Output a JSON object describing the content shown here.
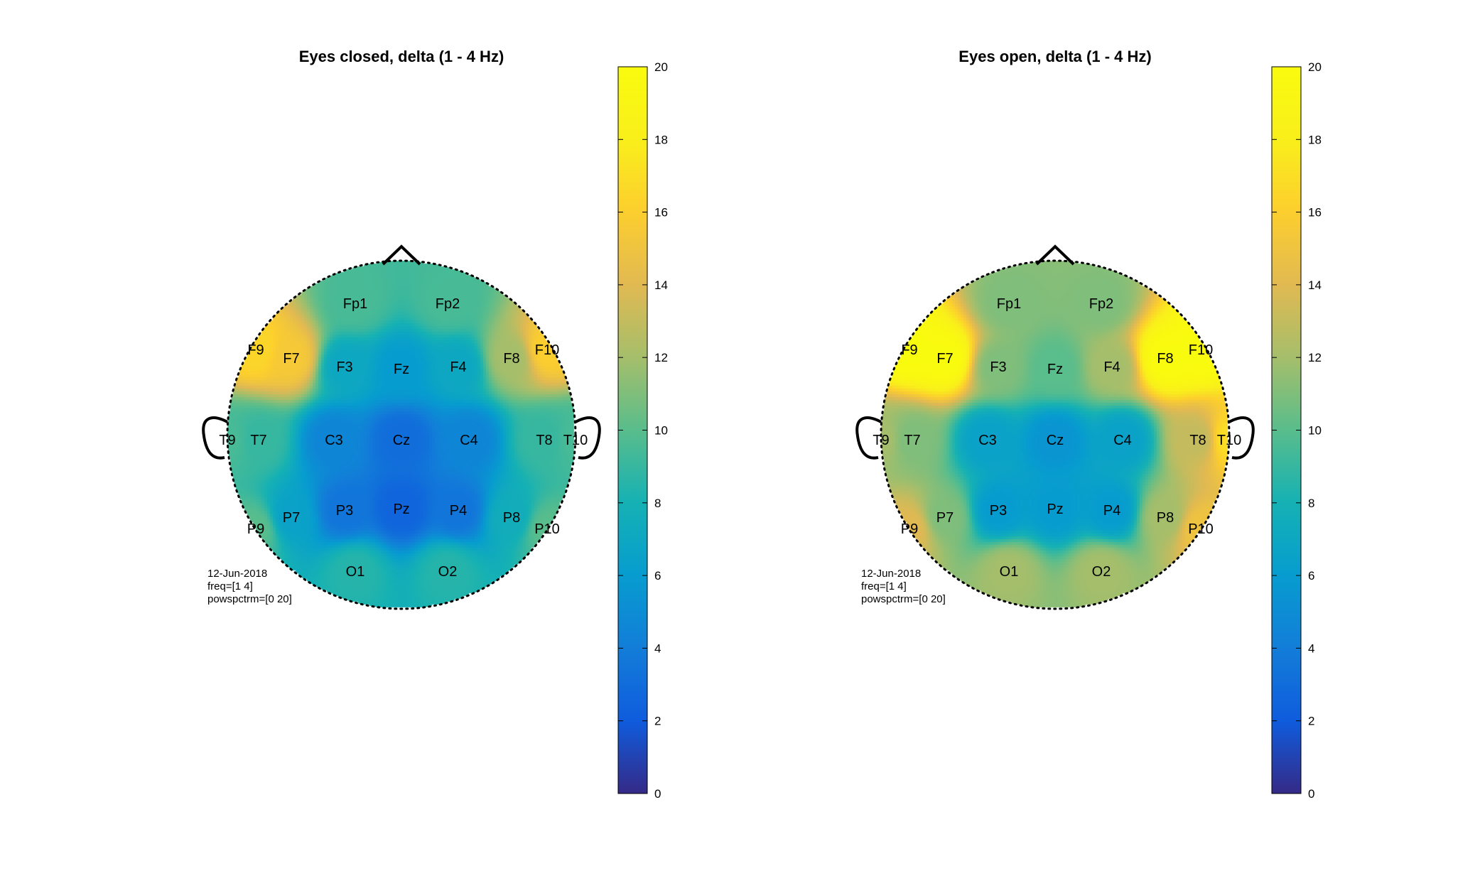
{
  "chart_data": [
    {
      "type": "heatmap",
      "subtype": "topoplot",
      "title": "Eyes closed, delta (1 - 4 Hz)",
      "colorbar": {
        "min": 0,
        "max": 20,
        "ticks": [
          0,
          2,
          4,
          6,
          8,
          10,
          12,
          14,
          16,
          18,
          20
        ],
        "colormap": "parula"
      },
      "notes": [
        "12-Jun-2018",
        "freq=[1 4]",
        "powspctrm=[0 20]"
      ],
      "electrodes": [
        {
          "name": "Fp1",
          "value": 9.5
        },
        {
          "name": "Fp2",
          "value": 9.5
        },
        {
          "name": "F9",
          "value": 16.5
        },
        {
          "name": "F7",
          "value": 15.5
        },
        {
          "name": "F3",
          "value": 7
        },
        {
          "name": "Fz",
          "value": 6
        },
        {
          "name": "F4",
          "value": 7
        },
        {
          "name": "F8",
          "value": 12
        },
        {
          "name": "F10",
          "value": 16
        },
        {
          "name": "T9",
          "value": 9.5
        },
        {
          "name": "T7",
          "value": 9
        },
        {
          "name": "C3",
          "value": 4.5
        },
        {
          "name": "Cz",
          "value": 3
        },
        {
          "name": "C4",
          "value": 4.5
        },
        {
          "name": "T8",
          "value": 9
        },
        {
          "name": "T10",
          "value": 9.5
        },
        {
          "name": "P9",
          "value": 10
        },
        {
          "name": "P7",
          "value": 6.5
        },
        {
          "name": "P3",
          "value": 3.5
        },
        {
          "name": "Pz",
          "value": 2.5
        },
        {
          "name": "P4",
          "value": 3.5
        },
        {
          "name": "P8",
          "value": 7.5
        },
        {
          "name": "P10",
          "value": 10
        },
        {
          "name": "O1",
          "value": 8.5
        },
        {
          "name": "O2",
          "value": 8.5
        }
      ]
    },
    {
      "type": "heatmap",
      "subtype": "topoplot",
      "title": "Eyes open, delta (1 - 4 Hz)",
      "colorbar": {
        "min": 0,
        "max": 20,
        "ticks": [
          0,
          2,
          4,
          6,
          8,
          10,
          12,
          14,
          16,
          18,
          20
        ],
        "colormap": "parula"
      },
      "notes": [
        "12-Jun-2018",
        "freq=[1 4]",
        "powspctrm=[0 20]"
      ],
      "electrodes": [
        {
          "name": "Fp1",
          "value": 11
        },
        {
          "name": "Fp2",
          "value": 11
        },
        {
          "name": "F9",
          "value": 20
        },
        {
          "name": "F7",
          "value": 20
        },
        {
          "name": "F3",
          "value": 11
        },
        {
          "name": "Fz",
          "value": 10
        },
        {
          "name": "F4",
          "value": 12
        },
        {
          "name": "F8",
          "value": 20
        },
        {
          "name": "F10",
          "value": 20
        },
        {
          "name": "T9",
          "value": 12
        },
        {
          "name": "T7",
          "value": 11
        },
        {
          "name": "C3",
          "value": 6.5
        },
        {
          "name": "Cz",
          "value": 5.5
        },
        {
          "name": "C4",
          "value": 6.5
        },
        {
          "name": "T8",
          "value": 13
        },
        {
          "name": "T10",
          "value": 17
        },
        {
          "name": "P9",
          "value": 14
        },
        {
          "name": "P7",
          "value": 11
        },
        {
          "name": "P3",
          "value": 6
        },
        {
          "name": "Pz",
          "value": 6
        },
        {
          "name": "P4",
          "value": 6
        },
        {
          "name": "P8",
          "value": 12
        },
        {
          "name": "P10",
          "value": 15
        },
        {
          "name": "O1",
          "value": 12
        },
        {
          "name": "O2",
          "value": 12
        }
      ]
    }
  ]
}
